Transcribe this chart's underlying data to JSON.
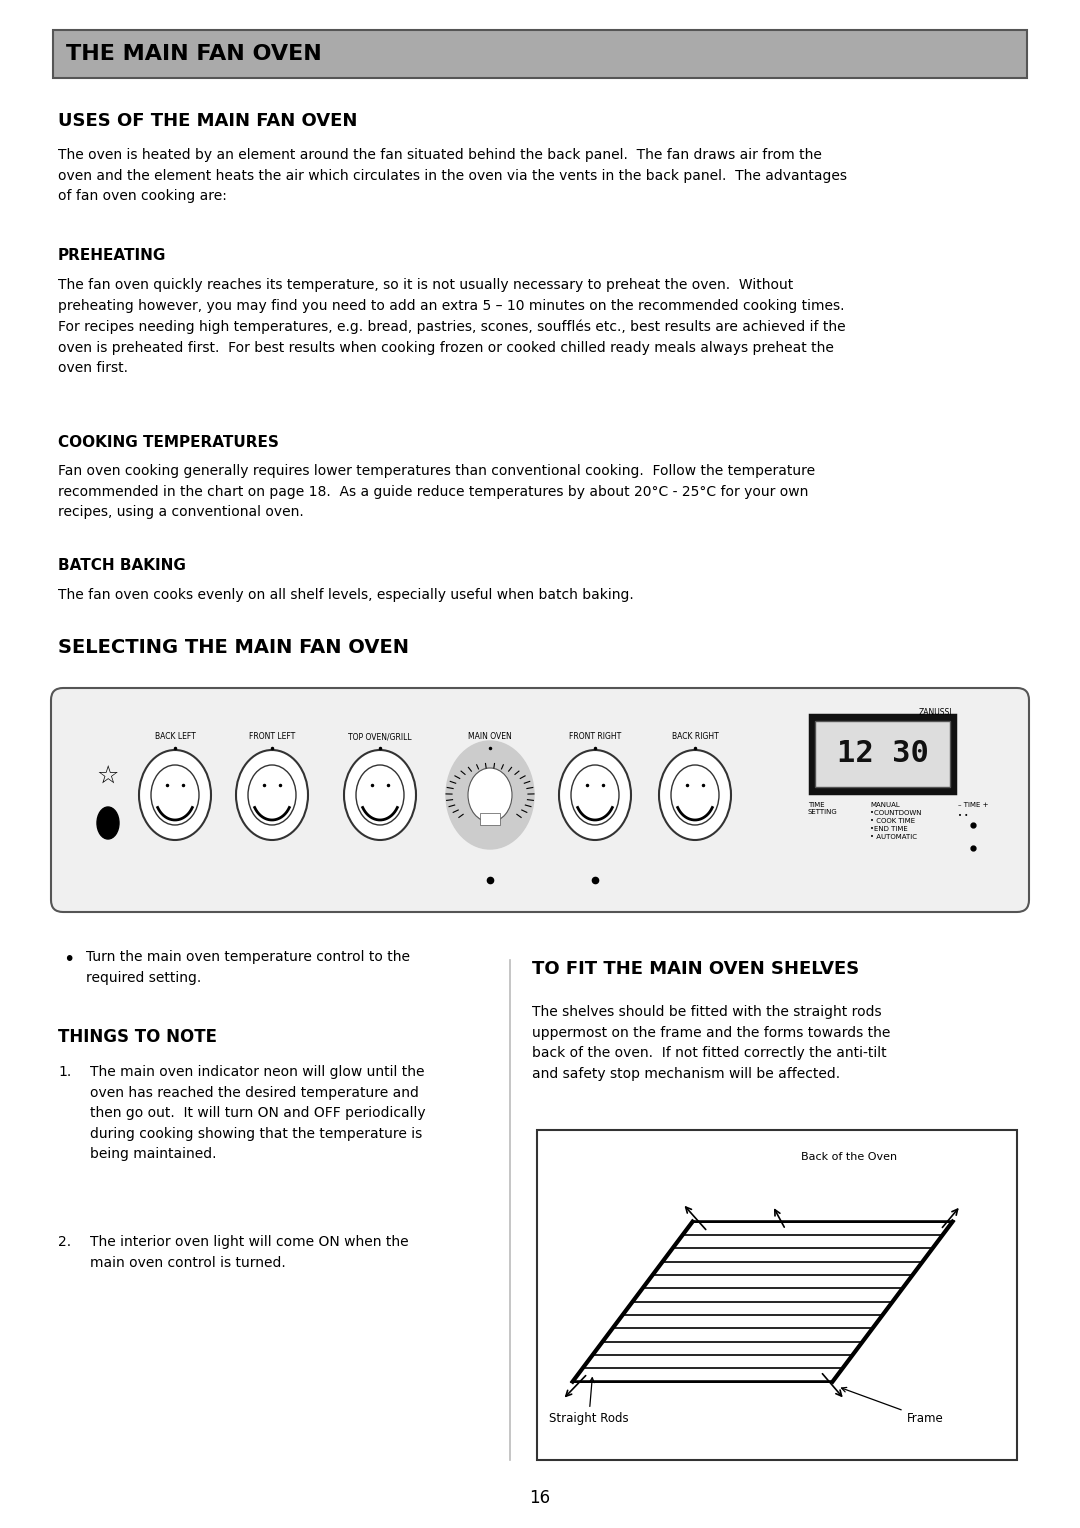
{
  "page_bg": "#ffffff",
  "header_bg": "#aaaaaa",
  "header_text": "THE MAIN FAN OVEN",
  "section1_title": "USES OF THE MAIN FAN OVEN",
  "section1_body": "The oven is heated by an element around the fan situated behind the back panel.  The fan draws air from the\noven and the element heats the air which circulates in the oven via the vents in the back panel.  The advantages\nof fan oven cooking are:",
  "preheating_title": "PREHEATING",
  "preheating_body": "The fan oven quickly reaches its temperature, so it is not usually necessary to preheat the oven.  Without\npreheating however, you may find you need to add an extra 5 – 10 minutes on the recommended cooking times.\nFor recipes needing high temperatures, e.g. bread, pastries, scones, soufflés etc., best results are achieved if the\noven is preheated first.  For best results when cooking frozen or cooked chilled ready meals always preheat the\noven first.",
  "cooking_temps_title": "COOKING TEMPERATURES",
  "cooking_temps_body": "Fan oven cooking generally requires lower temperatures than conventional cooking.  Follow the temperature\nrecommended in the chart on page 18.  As a guide reduce temperatures by about 20°C - 25°C for your own\nrecipes, using a conventional oven.",
  "batch_baking_title": "BATCH BAKING",
  "batch_baking_body": "The fan oven cooks evenly on all shelf levels, especially useful when batch baking.",
  "section2_title": "SELECTING THE MAIN FAN OVEN",
  "bullet_text": "Turn the main oven temperature control to the\nrequired setting.",
  "things_to_note_title": "THINGS TO NOTE",
  "note1": "The main oven indicator neon will glow until the\noven has reached the desired temperature and\nthen go out.  It will turn ON and OFF periodically\nduring cooking showing that the temperature is\nbeing maintained.",
  "note2": "The interior oven light will come ON when the\nmain oven control is turned.",
  "fit_shelves_title": "TO FIT THE MAIN OVEN SHELVES",
  "fit_shelves_body": "The shelves should be fitted with the straight rods\nuppermost on the frame and the forms towards the\nback of the oven.  If not fitted correctly the anti-tilt\nand safety stop mechanism will be affected.",
  "page_number": "16"
}
